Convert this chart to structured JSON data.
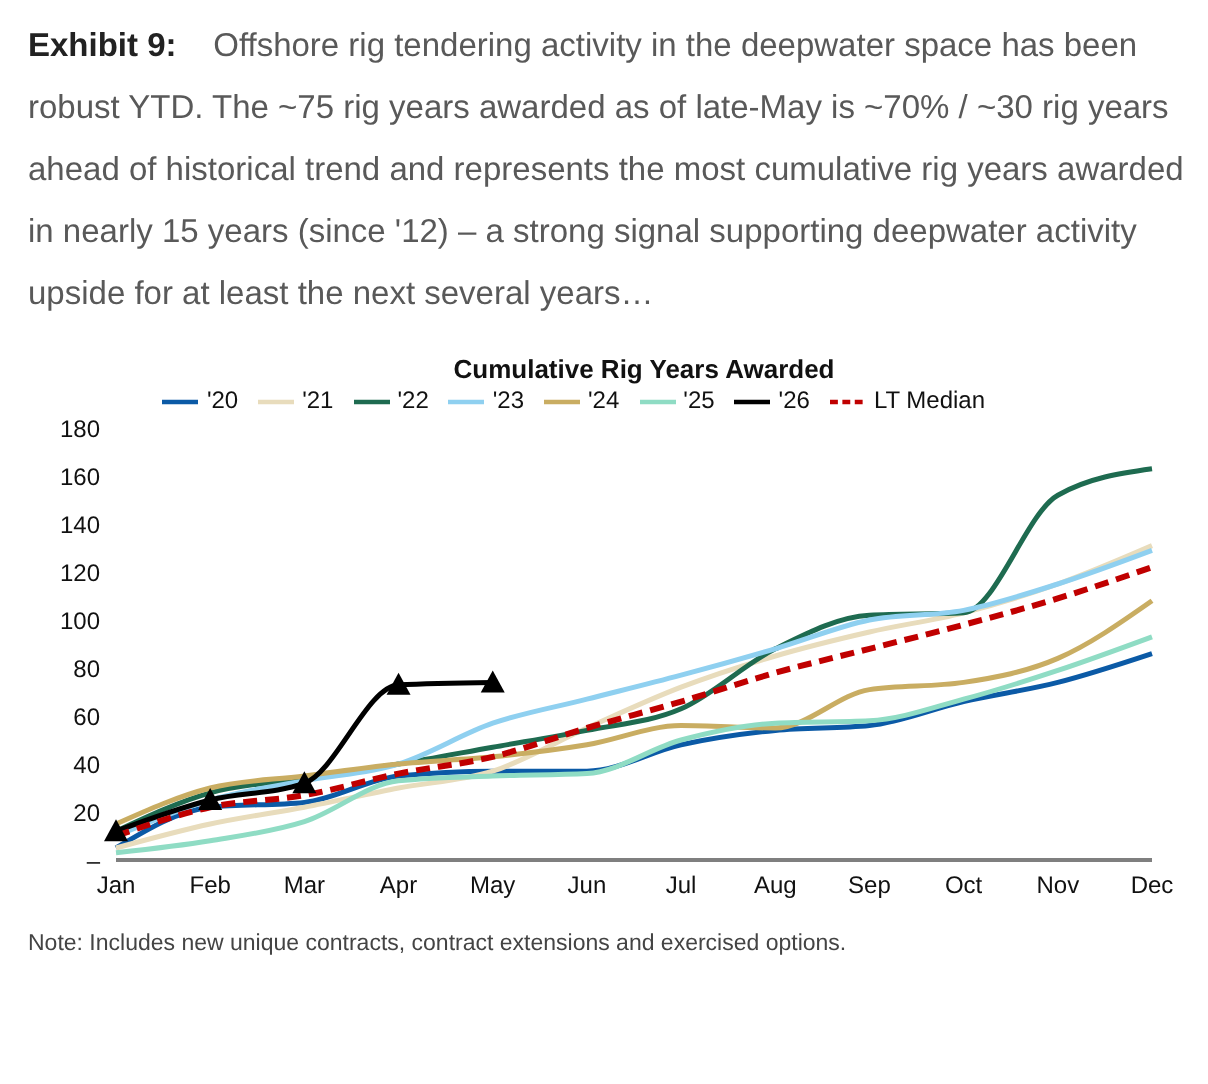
{
  "chart_data": {
    "type": "line",
    "title": "Exhibit 9:",
    "subtitle": "Offshore rig tendering activity in the deepwater space has been robust YTD. The ~75 rig years awarded as of late-May is ~70% / ~30 rig years ahead of historical trend and represents the most cumulative rig years awarded in nearly 15 years (since '12) – a strong signal supporting deepwater activity upside for at least the next several years…",
    "annotations": [
      "Cumulative Rig Years Awarded",
      "Note: Includes new unique contracts, contract extensions and exercised options."
    ],
    "categories": [
      "Jan",
      "Feb",
      "Mar",
      "Apr",
      "May",
      "Jun",
      "Jul",
      "Aug",
      "Sep",
      "Oct",
      "Nov",
      "Dec"
    ],
    "series": [
      {
        "name": "'20",
        "color": "#0b5aa6",
        "values": [
          5,
          22,
          24,
          35,
          37,
          37,
          48,
          54,
          56,
          66,
          74,
          86
        ]
      },
      {
        "name": "'21",
        "color": "#e8dcbc",
        "values": [
          5,
          15,
          22,
          30,
          37,
          55,
          72,
          85,
          95,
          103,
          115,
          131
        ]
      },
      {
        "name": "'22",
        "color": "#1e6b50",
        "values": [
          12,
          28,
          34,
          40,
          47,
          54,
          63,
          88,
          102,
          103,
          152,
          163
        ]
      },
      {
        "name": "'23",
        "color": "#8fd0f0",
        "values": [
          10,
          25,
          33,
          40,
          57,
          67,
          77,
          88,
          100,
          104,
          115,
          129
        ]
      },
      {
        "name": "'24",
        "color": "#c9ad62",
        "values": [
          15,
          30,
          35,
          40,
          43,
          48,
          56,
          55,
          71,
          74,
          84,
          108
        ]
      },
      {
        "name": "'25",
        "color": "#8fdcc4",
        "values": [
          3,
          8,
          16,
          33,
          35,
          36,
          50,
          57,
          58,
          67,
          79,
          93
        ]
      },
      {
        "name": "'26",
        "color": "#000000",
        "marker": "triangle",
        "values": [
          12,
          25,
          32,
          73,
          74,
          null,
          null,
          null,
          null,
          null,
          null,
          null
        ]
      },
      {
        "name": "LT Median",
        "color": "#c00000",
        "line_style": "dashed",
        "values": [
          10,
          22,
          27,
          36,
          43,
          55,
          66,
          78,
          88,
          98,
          109,
          122
        ]
      }
    ],
    "ylim": [
      0,
      180
    ],
    "yticks": [
      {
        "value": 0,
        "label": "–"
      },
      20,
      40,
      60,
      80,
      100,
      120,
      140,
      160,
      180
    ],
    "grid": false,
    "legend": "top",
    "marker": "none",
    "line_style": "solid"
  }
}
